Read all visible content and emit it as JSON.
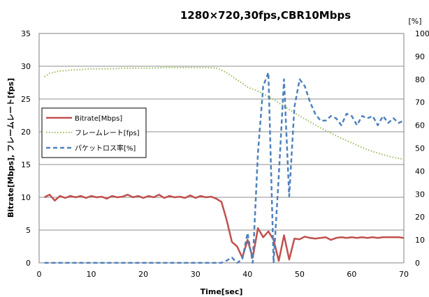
{
  "chart_data": {
    "type": "line",
    "title": "1280×720,30fps,CBR10Mbps",
    "xlabel": "Time[sec]",
    "ylabel": "Bitrate[Mbps], フレームレート[fps]",
    "y2label": "[%]",
    "xlim": [
      0,
      70
    ],
    "ylim": [
      0,
      35
    ],
    "y2lim": [
      0,
      100
    ],
    "xticks": [
      "0",
      "10",
      "20",
      "30",
      "40",
      "50",
      "60",
      "70"
    ],
    "yticks": [
      "0",
      "5",
      "10",
      "15",
      "20",
      "25",
      "30",
      "35"
    ],
    "y2ticks": [
      "0",
      "10",
      "20",
      "30",
      "40",
      "50",
      "60",
      "70",
      "80",
      "90",
      "100"
    ],
    "grid": true,
    "legend_position": "left",
    "colors": {
      "bitrate": "#c0504d",
      "framerate": "#9bbb59",
      "packetloss": "#4f81bd"
    },
    "series": [
      {
        "name": "Bitrate[Mbps]",
        "axis": "left",
        "style": "solid",
        "x": [
          1,
          2,
          3,
          4,
          5,
          6,
          7,
          8,
          9,
          10,
          11,
          12,
          13,
          14,
          15,
          16,
          17,
          18,
          19,
          20,
          21,
          22,
          23,
          24,
          25,
          26,
          27,
          28,
          29,
          30,
          31,
          32,
          33,
          34,
          35,
          36,
          37,
          38,
          39,
          40,
          41,
          42,
          43,
          44,
          45,
          46,
          47,
          48,
          49,
          50,
          51,
          52,
          53,
          54,
          55,
          56,
          57,
          58,
          59,
          60,
          61,
          62,
          63,
          64,
          65,
          66,
          67,
          68,
          69,
          70
        ],
        "values": [
          10.0,
          10.4,
          9.5,
          10.2,
          9.9,
          10.2,
          10.0,
          10.2,
          9.9,
          10.2,
          10.0,
          10.1,
          9.8,
          10.2,
          10.0,
          10.1,
          10.4,
          10.0,
          10.2,
          9.9,
          10.2,
          10.0,
          10.4,
          9.9,
          10.2,
          10.0,
          10.1,
          9.9,
          10.3,
          9.9,
          10.2,
          10.0,
          10.1,
          9.8,
          9.3,
          6.5,
          3.2,
          2.5,
          0.8,
          3.5,
          0.8,
          5.3,
          3.9,
          4.8,
          3.5,
          0.3,
          4.2,
          0.5,
          3.7,
          3.6,
          4.0,
          3.8,
          3.7,
          3.8,
          3.9,
          3.5,
          3.8,
          3.9,
          3.8,
          3.9,
          3.8,
          3.9,
          3.8,
          3.9,
          3.8,
          3.9,
          3.9,
          3.9,
          3.9,
          3.8
        ]
      },
      {
        "name": "フレームレート[fps]",
        "axis": "left",
        "style": "dotted",
        "x": [
          1,
          2,
          3,
          4,
          5,
          6,
          8,
          10,
          12,
          14,
          16,
          18,
          20,
          22,
          24,
          26,
          28,
          30,
          32,
          34,
          35,
          36,
          37,
          38,
          39,
          40,
          42,
          44,
          46,
          48,
          50,
          52,
          54,
          56,
          58,
          60,
          62,
          64,
          66,
          68,
          70
        ],
        "values": [
          28.4,
          28.9,
          29.1,
          29.3,
          29.3,
          29.4,
          29.5,
          29.6,
          29.6,
          29.6,
          29.7,
          29.7,
          29.7,
          29.7,
          29.8,
          29.8,
          29.8,
          29.8,
          29.8,
          29.7,
          29.4,
          29.0,
          28.5,
          27.9,
          27.4,
          26.8,
          26.2,
          25.4,
          24.4,
          23.4,
          22.4,
          21.5,
          20.6,
          19.8,
          19.0,
          18.3,
          17.6,
          17.0,
          16.5,
          16.1,
          15.8
        ]
      },
      {
        "name": "パケットロス率[%]",
        "axis": "right",
        "style": "dashed",
        "x": [
          1,
          5,
          10,
          15,
          20,
          25,
          30,
          35,
          36,
          37,
          38,
          39,
          40,
          41,
          42,
          43,
          44,
          45,
          46,
          47,
          48,
          49,
          50,
          51,
          52,
          53,
          54,
          55,
          56,
          57,
          58,
          59,
          60,
          61,
          62,
          63,
          64,
          65,
          66,
          67,
          68,
          69,
          70
        ],
        "values": [
          0,
          0,
          0,
          0,
          0,
          0,
          0,
          0,
          1,
          2.3,
          0,
          1.5,
          13,
          0,
          48,
          77,
          83,
          0,
          38,
          80,
          29,
          68,
          80,
          77,
          70,
          65,
          62,
          62,
          64,
          63,
          60,
          65,
          64,
          60,
          64,
          63,
          64,
          60,
          64,
          61,
          63,
          61,
          62
        ]
      }
    ]
  }
}
